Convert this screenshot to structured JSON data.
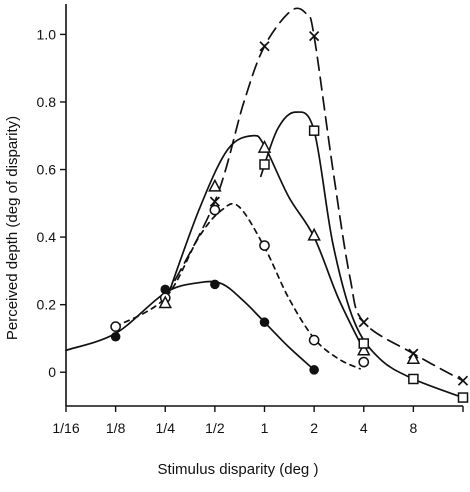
{
  "chart_data": {
    "type": "line",
    "xlabel": "Stimulus disparity (deg )",
    "ylabel": "Perceived depth (deg  of disparity)",
    "x_scale": "log2",
    "x_ticks": [
      "1/16",
      "1/8",
      "1/4",
      "1/2",
      "1",
      "2",
      "4",
      "8"
    ],
    "x_tick_values": [
      0.0625,
      0.125,
      0.25,
      0.5,
      1,
      2,
      4,
      8
    ],
    "xlim": [
      0.0625,
      16
    ],
    "y_ticks": [
      "0",
      "0.2",
      "0.4",
      "0.6",
      "0.8",
      "1.0"
    ],
    "ylim": [
      -0.1,
      1.09
    ],
    "grid": false,
    "series": [
      {
        "marker": "filled-circle",
        "line_style": "solid",
        "points": [
          [
            0.125,
            0.105
          ],
          [
            0.25,
            0.245
          ],
          [
            0.5,
            0.26
          ],
          [
            1,
            0.148
          ],
          [
            2,
            0.007
          ]
        ],
        "curve": [
          [
            0.0625,
            0.065
          ],
          [
            0.125,
            0.115
          ],
          [
            0.25,
            0.235
          ],
          [
            0.4,
            0.265
          ],
          [
            0.55,
            0.262
          ],
          [
            0.75,
            0.21
          ],
          [
            1,
            0.148
          ],
          [
            1.4,
            0.075
          ],
          [
            2,
            0.007
          ]
        ]
      },
      {
        "marker": "open-circle",
        "line_style": "short-dash",
        "points": [
          [
            0.125,
            0.135
          ],
          [
            0.25,
            0.22
          ],
          [
            0.5,
            0.48
          ],
          [
            1,
            0.375
          ],
          [
            2,
            0.095
          ],
          [
            4,
            0.03
          ]
        ],
        "curve": [
          [
            0.125,
            0.135
          ],
          [
            0.25,
            0.22
          ],
          [
            0.4,
            0.4
          ],
          [
            0.55,
            0.48
          ],
          [
            0.7,
            0.49
          ],
          [
            1,
            0.37
          ],
          [
            1.4,
            0.22
          ],
          [
            2,
            0.1
          ],
          [
            2.8,
            0.04
          ],
          [
            3.8,
            0.01
          ]
        ]
      },
      {
        "marker": "triangle",
        "line_style": "solid",
        "points": [
          [
            0.25,
            0.205
          ],
          [
            0.5,
            0.55
          ],
          [
            1,
            0.665
          ],
          [
            2,
            0.405
          ],
          [
            4,
            0.065
          ],
          [
            8,
            0.04
          ]
        ],
        "curve": [
          [
            0.25,
            0.205
          ],
          [
            0.4,
            0.48
          ],
          [
            0.6,
            0.66
          ],
          [
            0.85,
            0.7
          ],
          [
            1,
            0.67
          ],
          [
            1.4,
            0.52
          ],
          [
            2,
            0.4
          ],
          [
            2.8,
            0.22
          ],
          [
            4,
            0.065
          ]
        ]
      },
      {
        "marker": "square",
        "line_style": "solid",
        "points": [
          [
            1,
            0.615
          ],
          [
            2,
            0.715
          ],
          [
            4,
            0.085
          ],
          [
            8,
            -0.02
          ],
          [
            16,
            -0.075
          ]
        ],
        "curve": [
          [
            0.95,
            0.58
          ],
          [
            1.2,
            0.72
          ],
          [
            1.55,
            0.77
          ],
          [
            2,
            0.715
          ],
          [
            2.6,
            0.38
          ],
          [
            3.5,
            0.15
          ],
          [
            5,
            0.04
          ],
          [
            8,
            -0.02
          ],
          [
            16,
            -0.075
          ]
        ]
      },
      {
        "marker": "cross",
        "line_style": "long-dash",
        "points": [
          [
            0.5,
            0.505
          ],
          [
            1,
            0.965
          ],
          [
            2,
            0.995
          ],
          [
            4,
            0.148
          ],
          [
            8,
            0.055
          ],
          [
            16,
            -0.025
          ]
        ],
        "curve": [
          [
            0.25,
            0.22
          ],
          [
            0.5,
            0.505
          ],
          [
            0.75,
            0.8
          ],
          [
            1,
            0.965
          ],
          [
            1.45,
            1.07
          ],
          [
            1.8,
            1.06
          ],
          [
            2,
            0.995
          ],
          [
            2.6,
            0.6
          ],
          [
            3.3,
            0.28
          ],
          [
            4,
            0.148
          ],
          [
            8,
            0.055
          ],
          [
            16,
            -0.025
          ]
        ]
      }
    ]
  }
}
